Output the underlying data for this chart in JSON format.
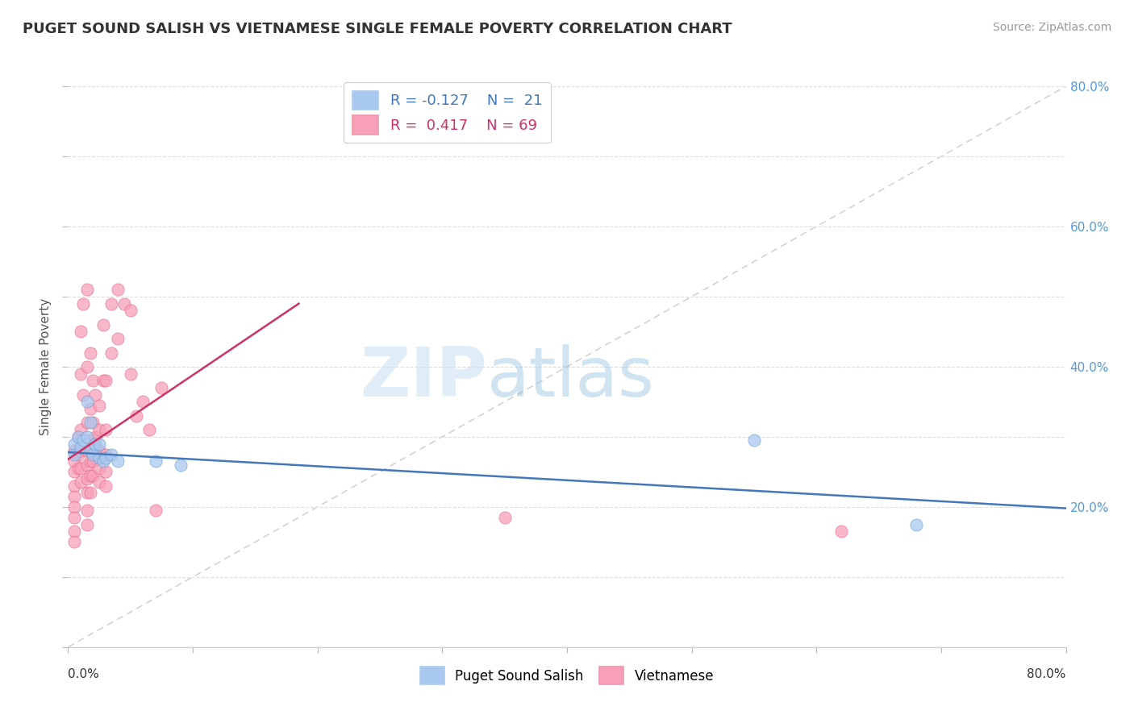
{
  "title": "PUGET SOUND SALISH VS VIETNAMESE SINGLE FEMALE POVERTY CORRELATION CHART",
  "source": "Source: ZipAtlas.com",
  "ylabel": "Single Female Poverty",
  "legend_labels": [
    "Puget Sound Salish",
    "Vietnamese"
  ],
  "salish_R": -0.127,
  "salish_N": 21,
  "viet_R": 0.417,
  "viet_N": 69,
  "salish_color": "#A8C8F0",
  "viet_color": "#F8A0B8",
  "salish_edge_color": "#6699CC",
  "viet_edge_color": "#E06080",
  "salish_line_color": "#4477BB",
  "viet_line_color": "#CC3366",
  "diagonal_color": "#CCCCCC",
  "background_color": "#FFFFFF",
  "xlim": [
    0.0,
    0.8
  ],
  "ylim": [
    0.0,
    0.8
  ],
  "right_yticks": [
    0.2,
    0.4,
    0.6,
    0.8
  ],
  "salish_points": [
    [
      0.005,
      0.29
    ],
    [
      0.005,
      0.275
    ],
    [
      0.008,
      0.3
    ],
    [
      0.01,
      0.285
    ],
    [
      0.012,
      0.295
    ],
    [
      0.015,
      0.35
    ],
    [
      0.015,
      0.3
    ],
    [
      0.018,
      0.32
    ],
    [
      0.018,
      0.28
    ],
    [
      0.02,
      0.275
    ],
    [
      0.022,
      0.29
    ],
    [
      0.025,
      0.29
    ],
    [
      0.025,
      0.27
    ],
    [
      0.028,
      0.265
    ],
    [
      0.03,
      0.27
    ],
    [
      0.035,
      0.275
    ],
    [
      0.04,
      0.265
    ],
    [
      0.07,
      0.265
    ],
    [
      0.09,
      0.26
    ],
    [
      0.55,
      0.295
    ],
    [
      0.68,
      0.175
    ]
  ],
  "viet_points": [
    [
      0.005,
      0.28
    ],
    [
      0.005,
      0.265
    ],
    [
      0.005,
      0.25
    ],
    [
      0.005,
      0.23
    ],
    [
      0.005,
      0.215
    ],
    [
      0.005,
      0.2
    ],
    [
      0.005,
      0.185
    ],
    [
      0.005,
      0.165
    ],
    [
      0.005,
      0.15
    ],
    [
      0.008,
      0.3
    ],
    [
      0.008,
      0.275
    ],
    [
      0.008,
      0.255
    ],
    [
      0.01,
      0.45
    ],
    [
      0.01,
      0.39
    ],
    [
      0.01,
      0.31
    ],
    [
      0.01,
      0.28
    ],
    [
      0.01,
      0.255
    ],
    [
      0.01,
      0.235
    ],
    [
      0.012,
      0.49
    ],
    [
      0.012,
      0.36
    ],
    [
      0.015,
      0.51
    ],
    [
      0.015,
      0.4
    ],
    [
      0.015,
      0.32
    ],
    [
      0.015,
      0.28
    ],
    [
      0.015,
      0.26
    ],
    [
      0.015,
      0.24
    ],
    [
      0.015,
      0.22
    ],
    [
      0.015,
      0.195
    ],
    [
      0.015,
      0.175
    ],
    [
      0.018,
      0.42
    ],
    [
      0.018,
      0.34
    ],
    [
      0.018,
      0.295
    ],
    [
      0.018,
      0.265
    ],
    [
      0.018,
      0.245
    ],
    [
      0.018,
      0.22
    ],
    [
      0.02,
      0.38
    ],
    [
      0.02,
      0.32
    ],
    [
      0.02,
      0.29
    ],
    [
      0.02,
      0.265
    ],
    [
      0.02,
      0.245
    ],
    [
      0.022,
      0.36
    ],
    [
      0.022,
      0.3
    ],
    [
      0.022,
      0.275
    ],
    [
      0.025,
      0.345
    ],
    [
      0.025,
      0.31
    ],
    [
      0.025,
      0.28
    ],
    [
      0.025,
      0.255
    ],
    [
      0.025,
      0.235
    ],
    [
      0.028,
      0.46
    ],
    [
      0.028,
      0.38
    ],
    [
      0.03,
      0.38
    ],
    [
      0.03,
      0.31
    ],
    [
      0.03,
      0.275
    ],
    [
      0.03,
      0.25
    ],
    [
      0.03,
      0.23
    ],
    [
      0.035,
      0.49
    ],
    [
      0.035,
      0.42
    ],
    [
      0.04,
      0.51
    ],
    [
      0.04,
      0.44
    ],
    [
      0.045,
      0.49
    ],
    [
      0.05,
      0.48
    ],
    [
      0.05,
      0.39
    ],
    [
      0.055,
      0.33
    ],
    [
      0.06,
      0.35
    ],
    [
      0.065,
      0.31
    ],
    [
      0.07,
      0.195
    ],
    [
      0.075,
      0.37
    ],
    [
      0.35,
      0.185
    ],
    [
      0.62,
      0.165
    ]
  ],
  "salish_line_x": [
    0.0,
    0.8
  ],
  "salish_line_y": [
    0.278,
    0.198
  ],
  "viet_line_x": [
    0.0,
    0.185
  ],
  "viet_line_y": [
    0.268,
    0.49
  ]
}
